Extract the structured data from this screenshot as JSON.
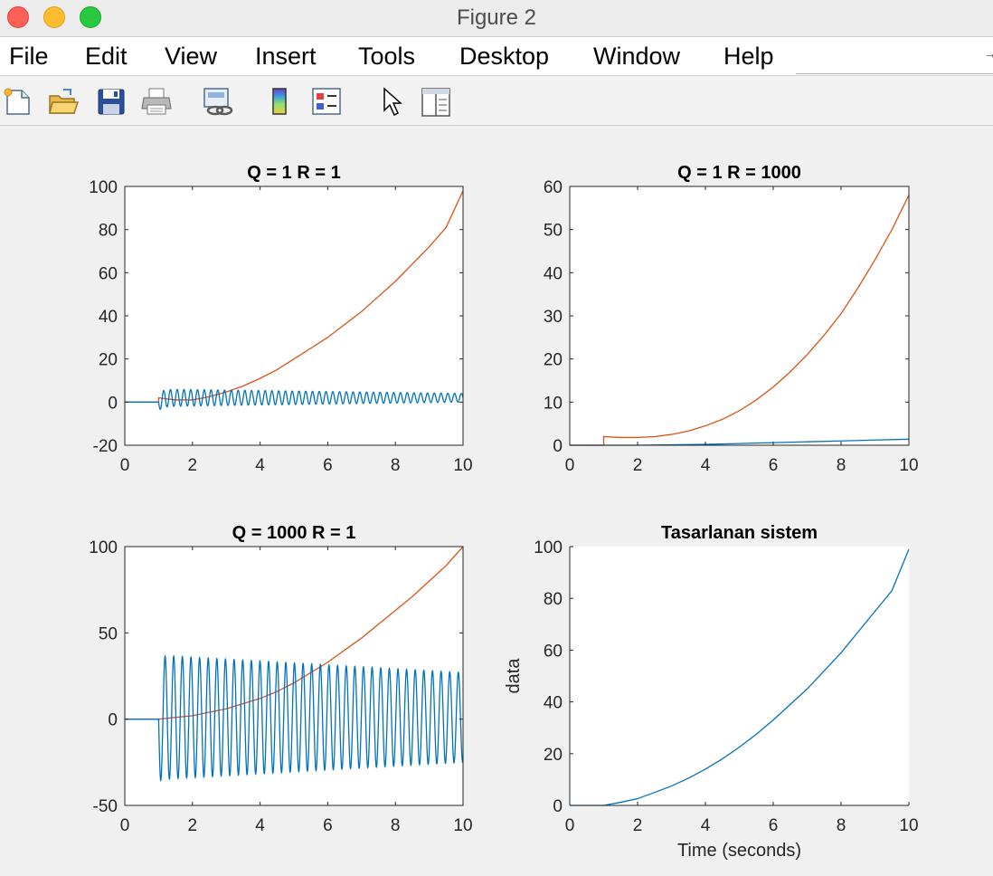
{
  "window": {
    "title": "Figure 2"
  },
  "menu": [
    "File",
    "Edit",
    "View",
    "Insert",
    "Tools",
    "Desktop",
    "Window",
    "Help"
  ],
  "toolbar": {
    "icons": [
      "new-figure-icon",
      "open-file-icon",
      "save-icon",
      "print-icon",
      "link-plot-icon",
      "colorbar-icon",
      "legend-icon",
      "pointer-icon",
      "property-inspector-icon"
    ]
  },
  "colors": {
    "series_blue": "#0072bd",
    "series_orange": "#d95319",
    "figure_bg": "#f0f0f0",
    "axes_bg": "#ffffff"
  },
  "chart_data": [
    {
      "type": "line",
      "title": "Q = 1 R = 1",
      "xlabel": "",
      "ylabel": "",
      "xlim": [
        0,
        10
      ],
      "ylim": [
        -20,
        100
      ],
      "xticks": [
        0,
        2,
        4,
        6,
        8,
        10
      ],
      "yticks": [
        -20,
        0,
        20,
        40,
        60,
        80,
        100
      ],
      "box": true,
      "grid": false,
      "series": [
        {
          "color": "#d95319",
          "x": [
            0,
            1,
            1,
            1.5,
            2,
            2.5,
            3,
            3.5,
            4,
            4.5,
            5,
            5.5,
            6,
            6.5,
            7,
            7.5,
            8,
            8.5,
            9,
            9.5,
            10
          ],
          "y": [
            0,
            0,
            2,
            1,
            1,
            2.5,
            4.7,
            7.5,
            11,
            15,
            20,
            25,
            30,
            36,
            42,
            49,
            56,
            64,
            72,
            81,
            98
          ]
        },
        {
          "color": "#0072bd",
          "description": "damped oscillation",
          "oscillation": {
            "start": 1.0,
            "offset": 2,
            "amplitude_start": 4,
            "amplitude_end": 2,
            "period": 0.2,
            "end": 10
          }
        }
      ]
    },
    {
      "type": "line",
      "title": "Q = 1 R = 1000",
      "xlabel": "",
      "ylabel": "",
      "xlim": [
        0,
        10
      ],
      "ylim": [
        0,
        60
      ],
      "xticks": [
        0,
        2,
        4,
        6,
        8,
        10
      ],
      "yticks": [
        0,
        10,
        20,
        30,
        40,
        50,
        60
      ],
      "box": true,
      "grid": false,
      "series": [
        {
          "color": "#d95319",
          "x": [
            0,
            1,
            1,
            1.5,
            2,
            2.5,
            3,
            3.5,
            4,
            4.5,
            5,
            5.5,
            6,
            6.5,
            7,
            7.5,
            8,
            8.5,
            9,
            9.5,
            10
          ],
          "y": [
            0,
            0,
            2,
            1.8,
            1.8,
            2,
            2.5,
            3.3,
            4.5,
            6,
            8,
            10.5,
            13.5,
            17,
            21,
            25.5,
            30.5,
            36.5,
            43,
            50,
            58
          ]
        },
        {
          "color": "#0072bd",
          "x": [
            0,
            1,
            2,
            3,
            4,
            5,
            6,
            7,
            8,
            9,
            10
          ],
          "y": [
            0,
            0,
            0,
            0.1,
            0.2,
            0.4,
            0.6,
            0.8,
            1,
            1.2,
            1.4
          ]
        }
      ]
    },
    {
      "type": "line",
      "title": "Q = 1000 R = 1",
      "xlabel": "",
      "ylabel": "",
      "xlim": [
        0,
        10
      ],
      "ylim": [
        -50,
        100
      ],
      "xticks": [
        0,
        2,
        4,
        6,
        8,
        10
      ],
      "yticks": [
        -50,
        0,
        50,
        100
      ],
      "box": true,
      "grid": false,
      "series": [
        {
          "color": "#d95319",
          "x": [
            0,
            1,
            1.5,
            2,
            2.5,
            3,
            3.5,
            4,
            4.5,
            5,
            5.5,
            6,
            6.5,
            7,
            7.5,
            8,
            8.5,
            9,
            9.5,
            10
          ],
          "y": [
            0,
            0,
            1,
            2,
            4,
            6,
            9,
            12,
            16,
            21,
            27,
            33,
            40,
            47,
            55,
            63,
            71,
            80,
            89,
            100
          ]
        },
        {
          "color": "#0072bd",
          "description": "sustained oscillation",
          "oscillation": {
            "start": 1.0,
            "offset": 1,
            "amplitude_start": 36,
            "amplitude_end": 26,
            "period": 0.255,
            "end": 10
          }
        }
      ]
    },
    {
      "type": "line",
      "title": "Tasarlanan sistem",
      "xlabel": "Time (seconds)",
      "ylabel": "data",
      "xlim": [
        0,
        10
      ],
      "ylim": [
        0,
        100
      ],
      "xticks": [
        0,
        2,
        4,
        6,
        8,
        10
      ],
      "yticks": [
        0,
        20,
        40,
        60,
        80,
        100
      ],
      "box": false,
      "grid": false,
      "series": [
        {
          "color": "#0072bd",
          "x": [
            0,
            1,
            1.5,
            2,
            2.5,
            3,
            3.5,
            4,
            4.5,
            5,
            5.5,
            6,
            6.5,
            7,
            7.5,
            8,
            8.5,
            9,
            9.5,
            10
          ],
          "y": [
            0,
            0,
            1.2,
            2.6,
            5,
            7.5,
            10.5,
            14,
            18,
            22.5,
            27.5,
            33,
            39,
            45,
            52,
            59,
            67,
            75,
            83,
            99
          ]
        }
      ]
    }
  ]
}
